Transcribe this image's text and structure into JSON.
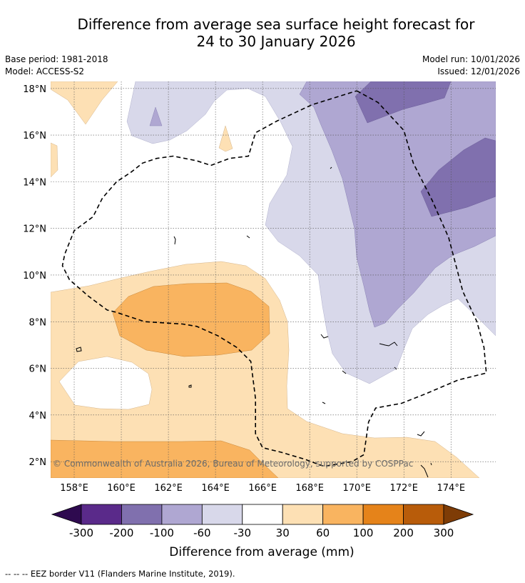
{
  "title_line1": "Difference from average sea surface height forecast for",
  "title_line2": "24 to 30 January 2026",
  "meta_left": [
    "Base period: 1981-2018",
    "Model: ACCESS-S2"
  ],
  "meta_right": [
    "Model run: 10/01/2026",
    "Issued: 12/01/2026"
  ],
  "copyright": "© Commonwealth of Australia 2026, Bureau of Meteorology, supported by COSPPac",
  "footer": "--  --  -- EEZ border V11 (Flanders Marine Institute, 2019).",
  "chart_data": {
    "type": "heatmap",
    "title": "Difference from average sea surface height forecast for 24 to 30 January 2026",
    "xlabel": "",
    "ylabel": "",
    "xlim": [
      157,
      175.9
    ],
    "ylim": [
      1.3,
      18.3
    ],
    "x_ticks": [
      158,
      160,
      162,
      164,
      166,
      168,
      170,
      172,
      174
    ],
    "x_tick_labels": [
      "158°E",
      "160°E",
      "162°E",
      "164°E",
      "166°E",
      "168°E",
      "170°E",
      "172°E",
      "174°E"
    ],
    "y_ticks": [
      2,
      4,
      6,
      8,
      10,
      12,
      14,
      16,
      18
    ],
    "y_tick_labels": [
      "2°N",
      "4°N",
      "6°N",
      "8°N",
      "10°N",
      "12°N",
      "14°N",
      "16°N",
      "18°N"
    ],
    "grid": true,
    "colorbar": {
      "label": "Difference from average (mm)",
      "tick_labels": [
        "-300",
        "-200",
        "-100",
        "-60",
        "-30",
        "30",
        "60",
        "100",
        "200",
        "300"
      ],
      "colors": [
        "#2e0a4f",
        "#5a2a8a",
        "#8070ae",
        "#afa7d2",
        "#d8d8ea",
        "#ffffff",
        "#fde0b4",
        "#f9b460",
        "#e5831a",
        "#b85c0a",
        "#7e3c06"
      ]
    },
    "regions": [
      {
        "name": "positive-30-60-band",
        "class": "30 to 60",
        "lon": [
          157,
          175.9
        ],
        "lat": [
          1.3,
          10.6
        ]
      },
      {
        "name": "positive-60-100-center",
        "class": "60 to 100",
        "lon": [
          159.6,
          166.3
        ],
        "lat": [
          6.6,
          9.7
        ]
      },
      {
        "name": "positive-60-100-south",
        "class": "60 to 100",
        "lon": [
          157,
          167
        ],
        "lat": [
          1.3,
          2.9
        ]
      },
      {
        "name": "negative-east",
        "class": "-30 to -60",
        "lon": [
          160.3,
          175.9
        ],
        "lat": [
          5.8,
          18.3
        ]
      },
      {
        "name": "negative-northeast",
        "class": "-60 to -100",
        "lon": [
          168.8,
          175.9
        ],
        "lat": [
          7.9,
          18.3
        ]
      },
      {
        "name": "negative-core",
        "class": "-100 to -200",
        "lon": [
          170,
          175.9
        ],
        "lat": [
          12.6,
          18.3
        ]
      }
    ],
    "eez_border": [
      [
        170.0,
        17.9
      ],
      [
        170.9,
        17.4
      ],
      [
        172.0,
        16.2
      ],
      [
        172.4,
        14.8
      ],
      [
        173.2,
        13.2
      ],
      [
        173.9,
        11.6
      ],
      [
        174.5,
        9.3
      ],
      [
        175.1,
        8.0
      ],
      [
        175.4,
        6.9
      ],
      [
        175.5,
        5.8
      ],
      [
        174.3,
        5.5
      ],
      [
        172.9,
        4.9
      ],
      [
        171.9,
        4.5
      ],
      [
        170.8,
        4.3
      ],
      [
        170.5,
        3.7
      ],
      [
        170.3,
        2.3
      ],
      [
        169.8,
        2.0
      ],
      [
        168.6,
        1.8
      ],
      [
        167.8,
        2.1
      ],
      [
        166.8,
        2.4
      ],
      [
        166.0,
        2.6
      ],
      [
        165.7,
        3.2
      ],
      [
        165.7,
        4.7
      ],
      [
        165.5,
        6.3
      ],
      [
        164.9,
        6.9
      ],
      [
        164.1,
        7.4
      ],
      [
        163.2,
        7.8
      ],
      [
        162.6,
        7.9
      ],
      [
        161.0,
        8.0
      ],
      [
        159.8,
        8.4
      ],
      [
        159.4,
        8.5
      ],
      [
        158.6,
        9.1
      ],
      [
        157.8,
        9.8
      ],
      [
        157.5,
        10.4
      ],
      [
        157.6,
        10.9
      ],
      [
        158.0,
        11.9
      ],
      [
        158.8,
        12.5
      ],
      [
        159.2,
        13.3
      ],
      [
        159.8,
        14.0
      ],
      [
        160.4,
        14.4
      ],
      [
        160.9,
        14.8
      ],
      [
        161.5,
        15.0
      ],
      [
        162.2,
        15.1
      ],
      [
        163.2,
        14.9
      ],
      [
        163.8,
        14.7
      ],
      [
        164.6,
        15.0
      ],
      [
        165.4,
        15.1
      ],
      [
        165.7,
        16.1
      ],
      [
        166.6,
        16.6
      ],
      [
        168.1,
        17.3
      ],
      [
        170.0,
        17.9
      ]
    ]
  }
}
